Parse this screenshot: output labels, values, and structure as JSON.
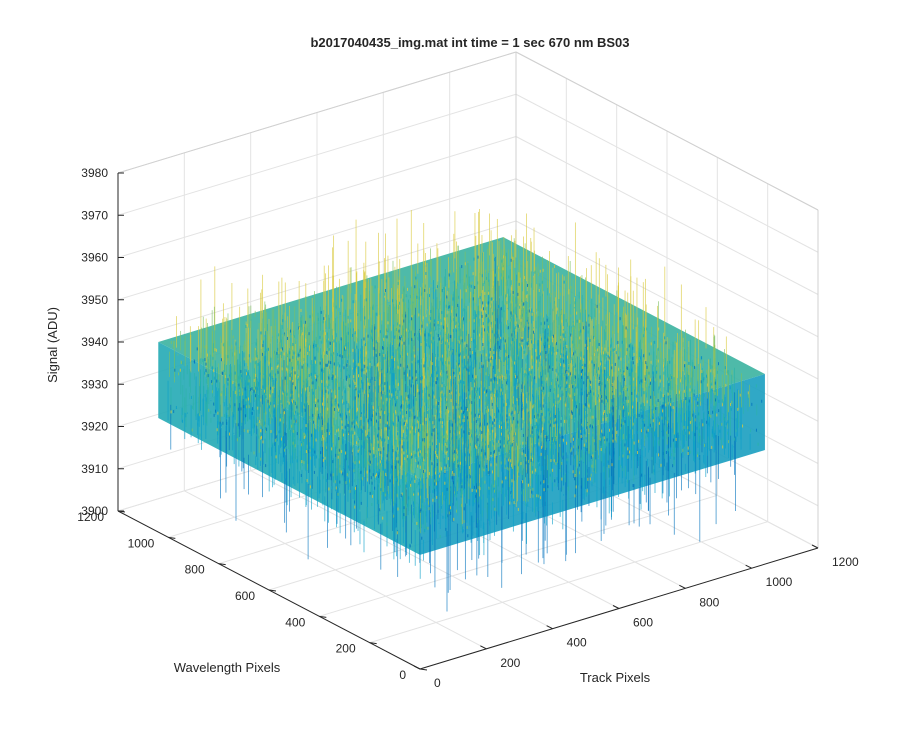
{
  "chart_data": {
    "type": "surface",
    "title": "b2017040435_img.mat int time = 1 sec  670 nm BS03",
    "xlabel": "Track Pixels",
    "ylabel": "Wavelength Pixels",
    "zlabel": "Signal (ADU)",
    "xlim": [
      0,
      1200
    ],
    "ylim": [
      0,
      1200
    ],
    "zlim": [
      3900,
      3980
    ],
    "x_ticks": [
      "0",
      "200",
      "400",
      "600",
      "800",
      "1000",
      "1200"
    ],
    "y_ticks": [
      "0",
      "200",
      "400",
      "600",
      "800",
      "1000",
      "1200"
    ],
    "z_ticks": [
      "3900",
      "3910",
      "3920",
      "3930",
      "3940",
      "3950",
      "3960",
      "3970",
      "3980"
    ],
    "data_extent": {
      "x": [
        0,
        1040
      ],
      "y": [
        0,
        1040
      ]
    },
    "signal_range": {
      "min": 3910,
      "max": 3960,
      "typical_low": 3927,
      "typical_high": 3945
    },
    "colormap": [
      "#0072bd",
      "#0a9fc9",
      "#2bb3a6",
      "#7fc063",
      "#d9c93a"
    ],
    "grid": true
  }
}
